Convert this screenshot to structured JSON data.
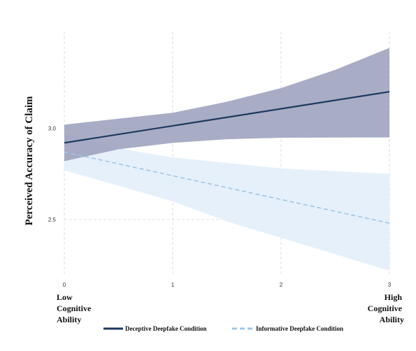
{
  "chart_data": {
    "type": "line",
    "ylabel": "Perceived Accuracy of Claim",
    "xlabel": "",
    "x_ticks": [
      0,
      1,
      2,
      3
    ],
    "y_ticks": [
      2.5,
      3.0
    ],
    "y_tick_labels": [
      "2.5",
      "3.0"
    ],
    "xlim": [
      0,
      3
    ],
    "ylim": [
      2.19,
      3.53
    ],
    "grid": true,
    "low_label": [
      "Low",
      "Cognitive",
      "Ability"
    ],
    "high_label": [
      "High",
      "Cognitive",
      "Ability"
    ],
    "legend_position": "bottom",
    "series": [
      {
        "name": "Deceptive Deepfake Condition",
        "style": "solid",
        "color": "#1c3a5e",
        "band_color": "#9a9dbb",
        "x": [
          0,
          3
        ],
        "y": [
          2.92,
          3.2
        ],
        "lower": [
          {
            "x": 0,
            "y": 2.82
          },
          {
            "x": 0.5,
            "y": 2.885
          },
          {
            "x": 1,
            "y": 2.92
          },
          {
            "x": 1.5,
            "y": 2.94
          },
          {
            "x": 2,
            "y": 2.948
          },
          {
            "x": 3,
            "y": 2.95
          }
        ],
        "upper": [
          {
            "x": 0,
            "y": 3.02
          },
          {
            "x": 1,
            "y": 3.085
          },
          {
            "x": 1.5,
            "y": 3.145
          },
          {
            "x": 2,
            "y": 3.22
          },
          {
            "x": 2.5,
            "y": 3.32
          },
          {
            "x": 3,
            "y": 3.44
          }
        ]
      },
      {
        "name": "Informative Deepfake Condition",
        "style": "dashed",
        "color": "#9ec6e6",
        "band_color": "#e3eef9",
        "x": [
          0,
          3
        ],
        "y": [
          2.87,
          2.48
        ],
        "lower": [
          {
            "x": 0,
            "y": 2.77
          },
          {
            "x": 1,
            "y": 2.6
          },
          {
            "x": 1.5,
            "y": 2.49
          },
          {
            "x": 2,
            "y": 2.4
          },
          {
            "x": 2.5,
            "y": 2.31
          },
          {
            "x": 3,
            "y": 2.22
          }
        ],
        "upper": [
          {
            "x": 0,
            "y": 2.97
          },
          {
            "x": 0.5,
            "y": 2.89
          },
          {
            "x": 1,
            "y": 2.84
          },
          {
            "x": 1.5,
            "y": 2.81
          },
          {
            "x": 2,
            "y": 2.78
          },
          {
            "x": 3,
            "y": 2.75
          }
        ]
      }
    ]
  }
}
